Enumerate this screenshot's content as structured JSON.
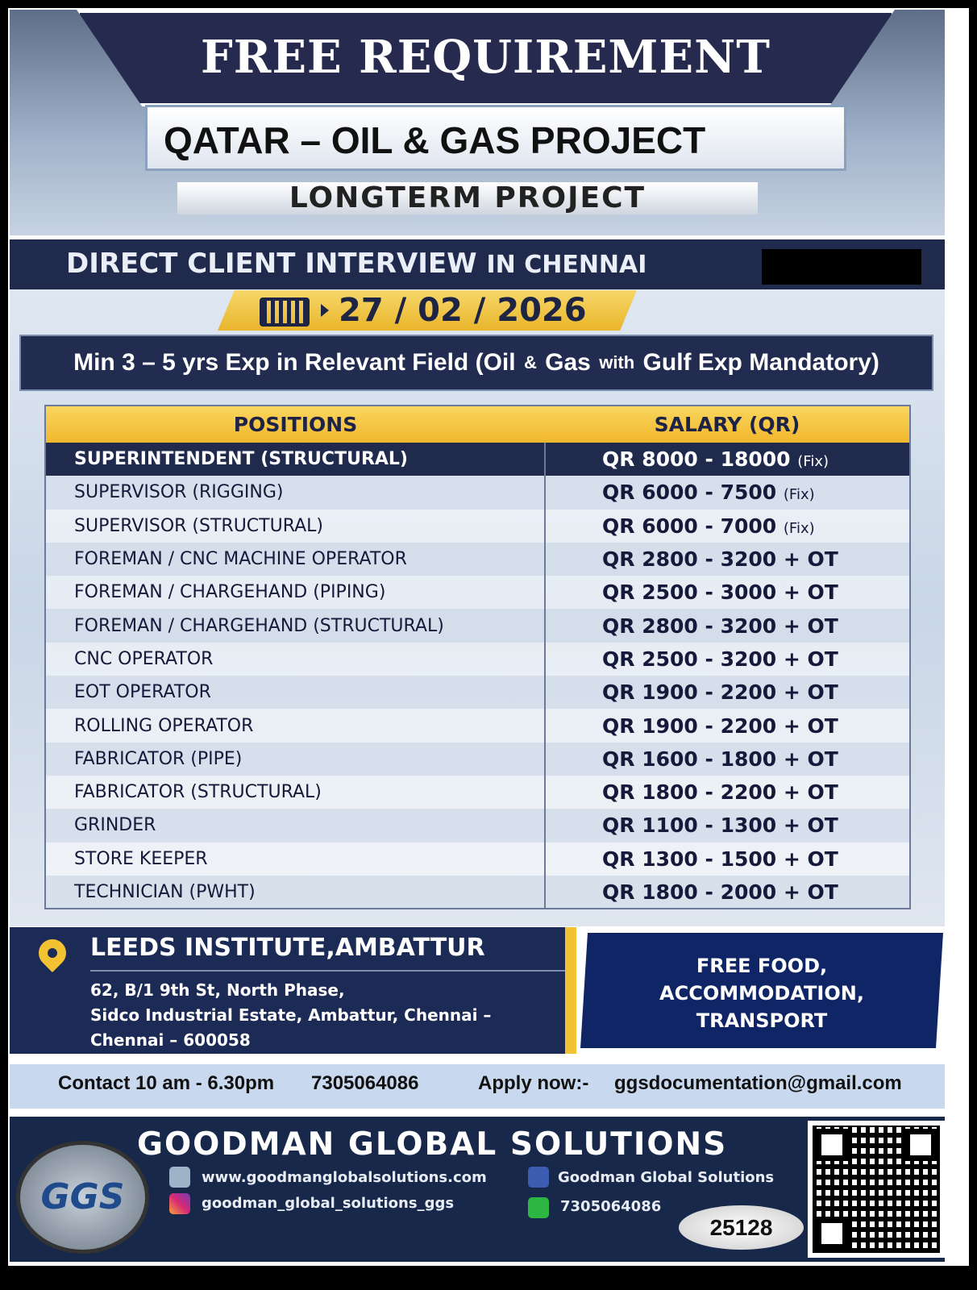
{
  "header": {
    "title": "FREE REQUIREMENT",
    "project": "QATAR – OIL & GAS PROJECT",
    "duration": "LONGTERM PROJECT"
  },
  "interview": {
    "label": "DIRECT CLIENT INTERVIEW",
    "location": "IN CHENNAI",
    "date": "27 / 02 / 2026"
  },
  "requirement": {
    "main": "Min 3 – 5 yrs Exp in Relevant Field (Oil ",
    "amp": "&",
    "gas": " Gas ",
    "with": "with",
    "rest": " Gulf Exp Mandatory)"
  },
  "table": {
    "headers": [
      "POSITIONS",
      "SALARY (QR)"
    ],
    "rows": [
      {
        "position": "SUPERINTENDENT (STRUCTURAL)",
        "salary": "QR 8000 - 18000",
        "note": "(Fix)"
      },
      {
        "position": "SUPERVISOR (RIGGING)",
        "salary": "QR 6000 - 7500",
        "note": "(Fix)"
      },
      {
        "position": "SUPERVISOR (STRUCTURAL)",
        "salary": "QR 6000 - 7000",
        "note": "(Fix)"
      },
      {
        "position": "FOREMAN / CNC MACHINE OPERATOR",
        "salary": "QR 2800 - 3200 + OT",
        "note": ""
      },
      {
        "position": "FOREMAN / CHARGEHAND (PIPING)",
        "salary": "QR 2500 - 3000 + OT",
        "note": ""
      },
      {
        "position": "FOREMAN / CHARGEHAND (STRUCTURAL)",
        "salary": "QR 2800 - 3200 + OT",
        "note": ""
      },
      {
        "position": "CNC OPERATOR",
        "salary": "QR 2500 - 3200 + OT",
        "note": ""
      },
      {
        "position": "EOT OPERATOR",
        "salary": "QR 1900 - 2200 + OT",
        "note": ""
      },
      {
        "position": "ROLLING OPERATOR",
        "salary": "QR 1900 - 2200 + OT",
        "note": ""
      },
      {
        "position": "FABRICATOR (PIPE)",
        "salary": "QR 1600 - 1800 + OT",
        "note": ""
      },
      {
        "position": "FABRICATOR (STRUCTURAL)",
        "salary": "QR 1800 - 2200 + OT",
        "note": ""
      },
      {
        "position": "GRINDER",
        "salary": "QR 1100 - 1300 + OT",
        "note": ""
      },
      {
        "position": "STORE KEEPER",
        "salary": "QR 1300 - 1500 + OT",
        "note": ""
      },
      {
        "position": "TECHNICIAN (PWHT)",
        "salary": "QR 1800 - 2000 + OT",
        "note": ""
      }
    ]
  },
  "venue": {
    "name": "LEEDS INSTITUTE,AMBATTUR",
    "line1": "62, B/1 9th St, North Phase,",
    "line2": "Sidco Industrial Estate, Ambattur, Chennai –",
    "line3": "Chennai – 600058"
  },
  "benefits": [
    "FREE  FOOD,",
    "ACCOMMODATION,",
    "TRANSPORT"
  ],
  "contact": {
    "hours": "Contact 10 am - 6.30pm",
    "phone": "7305064086",
    "apply": "Apply now:-",
    "email": "ggsdocumentation@gmail.com"
  },
  "footer": {
    "company": "GOODMAN GLOBAL SOLUTIONS",
    "logo": "GGS",
    "website": "www.goodmanglobalsolutions.com",
    "facebook": "Goodman Global Solutions",
    "instagram": "goodman_global_solutions_ggs",
    "whatsapp": "7305064086",
    "ref": "25128"
  },
  "colors": {
    "navy": "#1f2a4d",
    "gold": "#f3c233"
  }
}
